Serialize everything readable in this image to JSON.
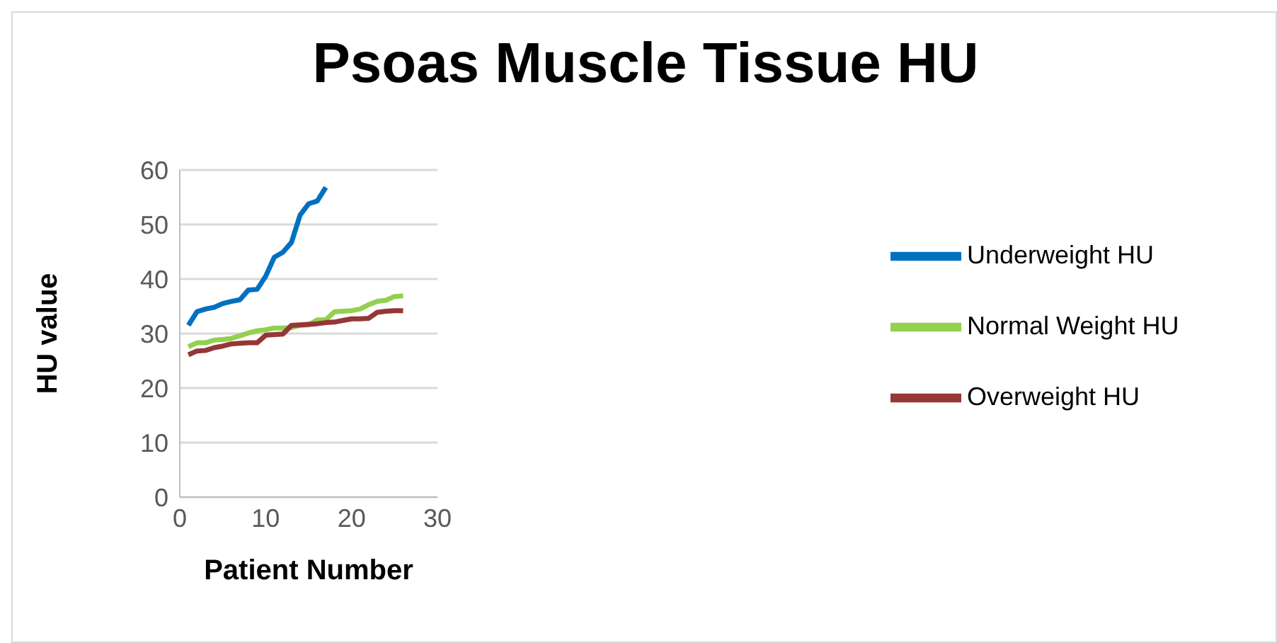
{
  "chart_data": {
    "type": "line",
    "title": "Psoas Muscle Tissue HU",
    "xlabel": "Patient Number",
    "ylabel": "HU value",
    "x": [
      1,
      2,
      3,
      4,
      5,
      6,
      7,
      8,
      9,
      10,
      11,
      12,
      13,
      14,
      15,
      16,
      17,
      18,
      19,
      20,
      21,
      22,
      23,
      24,
      25,
      26
    ],
    "series": [
      {
        "name": "Underweight HU",
        "color": "#0070c0",
        "values": [
          31.5,
          34,
          34.5,
          34.8,
          35.5,
          35.9,
          36.2,
          38,
          38.1,
          40.5,
          44,
          44.9,
          46.7,
          51.7,
          53.8,
          54.3,
          56.8,
          null,
          null,
          null,
          null,
          null,
          null,
          null,
          null,
          null
        ]
      },
      {
        "name": "Normal Weight HU",
        "color": "#92d050",
        "values": [
          27.6,
          28.3,
          28.3,
          28.8,
          28.9,
          29.1,
          29.6,
          30.1,
          30.5,
          30.7,
          31,
          31,
          31.1,
          31.5,
          31.6,
          32.5,
          32.5,
          34,
          34.1,
          34.2,
          34.5,
          35.3,
          35.9,
          36.1,
          36.8,
          36.9
        ]
      },
      {
        "name": "Overweight HU",
        "color": "#953735",
        "values": [
          26.1,
          26.8,
          26.9,
          27.4,
          27.7,
          28.1,
          28.2,
          28.3,
          28.3,
          29.7,
          29.8,
          29.9,
          31.5,
          31.6,
          31.7,
          31.8,
          32,
          32.1,
          32.4,
          32.7,
          32.7,
          32.8,
          33.9,
          34.1,
          34.2,
          34.2
        ]
      }
    ],
    "xlim": [
      0,
      30
    ],
    "xticks": [
      0,
      10,
      20,
      30
    ],
    "ylim": [
      0,
      60
    ],
    "yticks": [
      0,
      10,
      20,
      30,
      40,
      50,
      60
    ],
    "grid": "y",
    "legend": "right",
    "marker": "none",
    "line_style": "solid"
  }
}
